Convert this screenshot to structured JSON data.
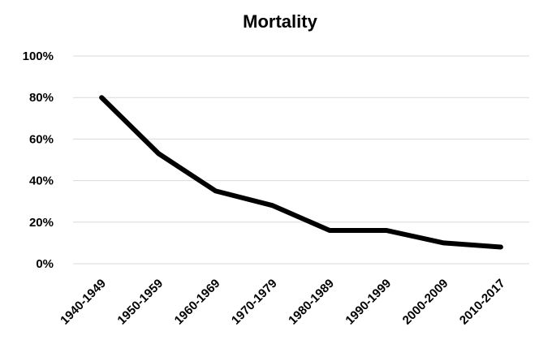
{
  "chart_data": {
    "type": "line",
    "title": "Mortality",
    "xlabel": "",
    "ylabel": "",
    "categories": [
      "1940-1949",
      "1950-1959",
      "1960-1969",
      "1970-1979",
      "1980-1989",
      "1990-1999",
      "2000-2009",
      "2010-2017"
    ],
    "series": [
      {
        "values": [
          80,
          53,
          35,
          28,
          16,
          16,
          10,
          8
        ]
      }
    ],
    "ylim": [
      0,
      100
    ],
    "yticks": [
      0,
      20,
      40,
      60,
      80,
      100
    ],
    "ytick_labels": [
      "0%",
      "20%",
      "40%",
      "60%",
      "80%",
      "100%"
    ],
    "grid": true,
    "legend": "none",
    "colors": {
      "line": "#000000",
      "grid": "#d9d9d9"
    }
  }
}
